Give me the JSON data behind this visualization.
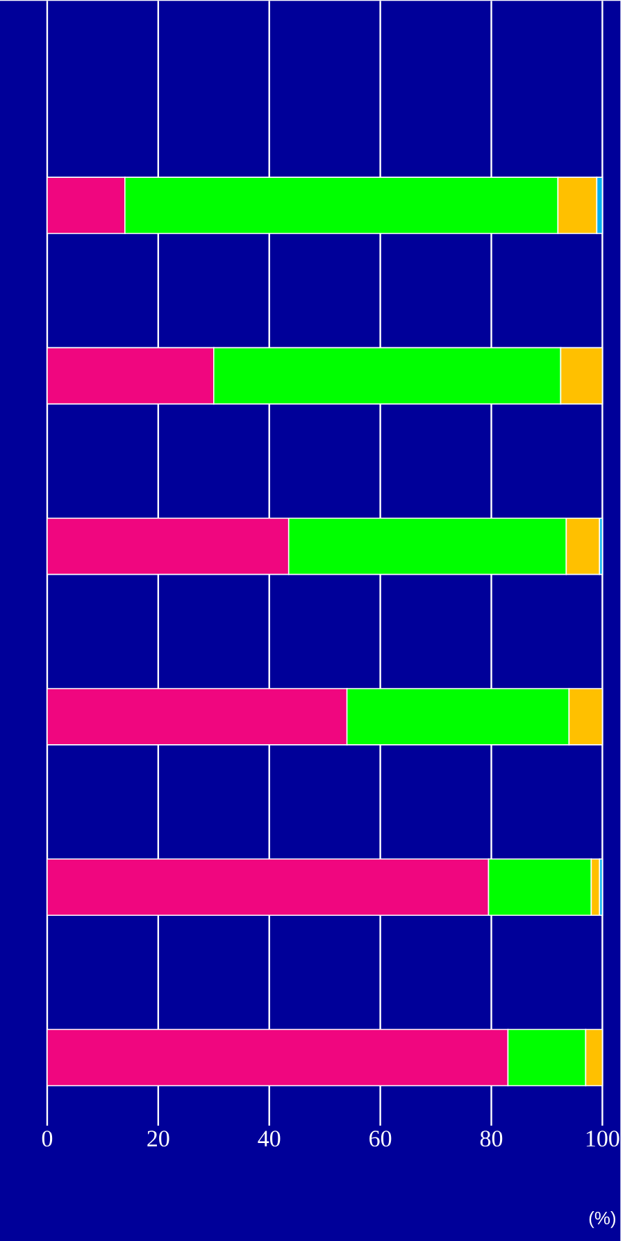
{
  "chart_data": {
    "type": "bar",
    "orientation": "horizontal",
    "stacked": true,
    "xlabel": "(%)",
    "categories": [
      null,
      null,
      null,
      null,
      null,
      null
    ],
    "series": [
      {
        "color": "#f0067f",
        "values": [
          14,
          30,
          43.5,
          54,
          79.5,
          83
        ]
      },
      {
        "color": "#00ff00",
        "values": [
          78,
          62.5,
          50,
          40,
          18.5,
          14
        ]
      },
      {
        "color": "#ffc000",
        "values": [
          7,
          7.5,
          6,
          6,
          1.5,
          3
        ]
      },
      {
        "color": "#00b0f0",
        "values": [
          1,
          null,
          0.5,
          null,
          0.5,
          null
        ]
      }
    ],
    "xlim": [
      0,
      100
    ],
    "xticks": [
      0,
      20,
      40,
      60,
      80,
      100
    ],
    "grid": "x",
    "tick_labels": "x"
  }
}
